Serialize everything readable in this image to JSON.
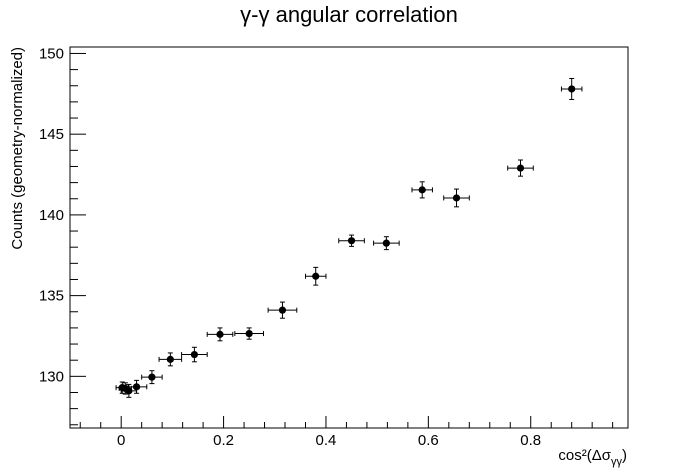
{
  "chart_data": {
    "type": "scatter",
    "title": "γ-γ angular correlation",
    "xlabel": "cos²(Δσ",
    "xlabel_sub": "γγ",
    "xlabel_close": ")",
    "ylabel": "Counts (geometry-normalized)",
    "xlim": [
      -0.1,
      0.99
    ],
    "ylim": [
      126.8,
      150.4
    ],
    "xticks": [
      0,
      0.2,
      0.4,
      0.6,
      0.8
    ],
    "xtick_labels": [
      "0",
      "0.2",
      "0.4",
      "0.6",
      "0.8"
    ],
    "yticks": [
      130,
      135,
      140,
      145,
      150
    ],
    "ytick_labels": [
      "130",
      "135",
      "140",
      "145",
      "150"
    ],
    "grid": false,
    "points": [
      {
        "x": 0.002,
        "y": 129.3,
        "xerr": 0.012,
        "yerr": 0.35
      },
      {
        "x": 0.008,
        "y": 129.25,
        "xerr": 0.012,
        "yerr": 0.35
      },
      {
        "x": 0.015,
        "y": 129.1,
        "xerr": 0.015,
        "yerr": 0.4
      },
      {
        "x": 0.03,
        "y": 129.35,
        "xerr": 0.02,
        "yerr": 0.4
      },
      {
        "x": 0.06,
        "y": 129.95,
        "xerr": 0.02,
        "yerr": 0.4
      },
      {
        "x": 0.096,
        "y": 131.05,
        "xerr": 0.022,
        "yerr": 0.4
      },
      {
        "x": 0.143,
        "y": 131.35,
        "xerr": 0.025,
        "yerr": 0.45
      },
      {
        "x": 0.193,
        "y": 132.6,
        "xerr": 0.025,
        "yerr": 0.4
      },
      {
        "x": 0.25,
        "y": 132.65,
        "xerr": 0.028,
        "yerr": 0.35
      },
      {
        "x": 0.315,
        "y": 134.1,
        "xerr": 0.028,
        "yerr": 0.5
      },
      {
        "x": 0.38,
        "y": 136.2,
        "xerr": 0.02,
        "yerr": 0.55
      },
      {
        "x": 0.45,
        "y": 138.4,
        "xerr": 0.025,
        "yerr": 0.35
      },
      {
        "x": 0.518,
        "y": 138.25,
        "xerr": 0.025,
        "yerr": 0.4
      },
      {
        "x": 0.588,
        "y": 141.55,
        "xerr": 0.02,
        "yerr": 0.5
      },
      {
        "x": 0.655,
        "y": 141.05,
        "xerr": 0.025,
        "yerr": 0.55
      },
      {
        "x": 0.78,
        "y": 142.9,
        "xerr": 0.025,
        "yerr": 0.5
      },
      {
        "x": 0.88,
        "y": 147.8,
        "xerr": 0.02,
        "yerr": 0.65
      }
    ]
  }
}
